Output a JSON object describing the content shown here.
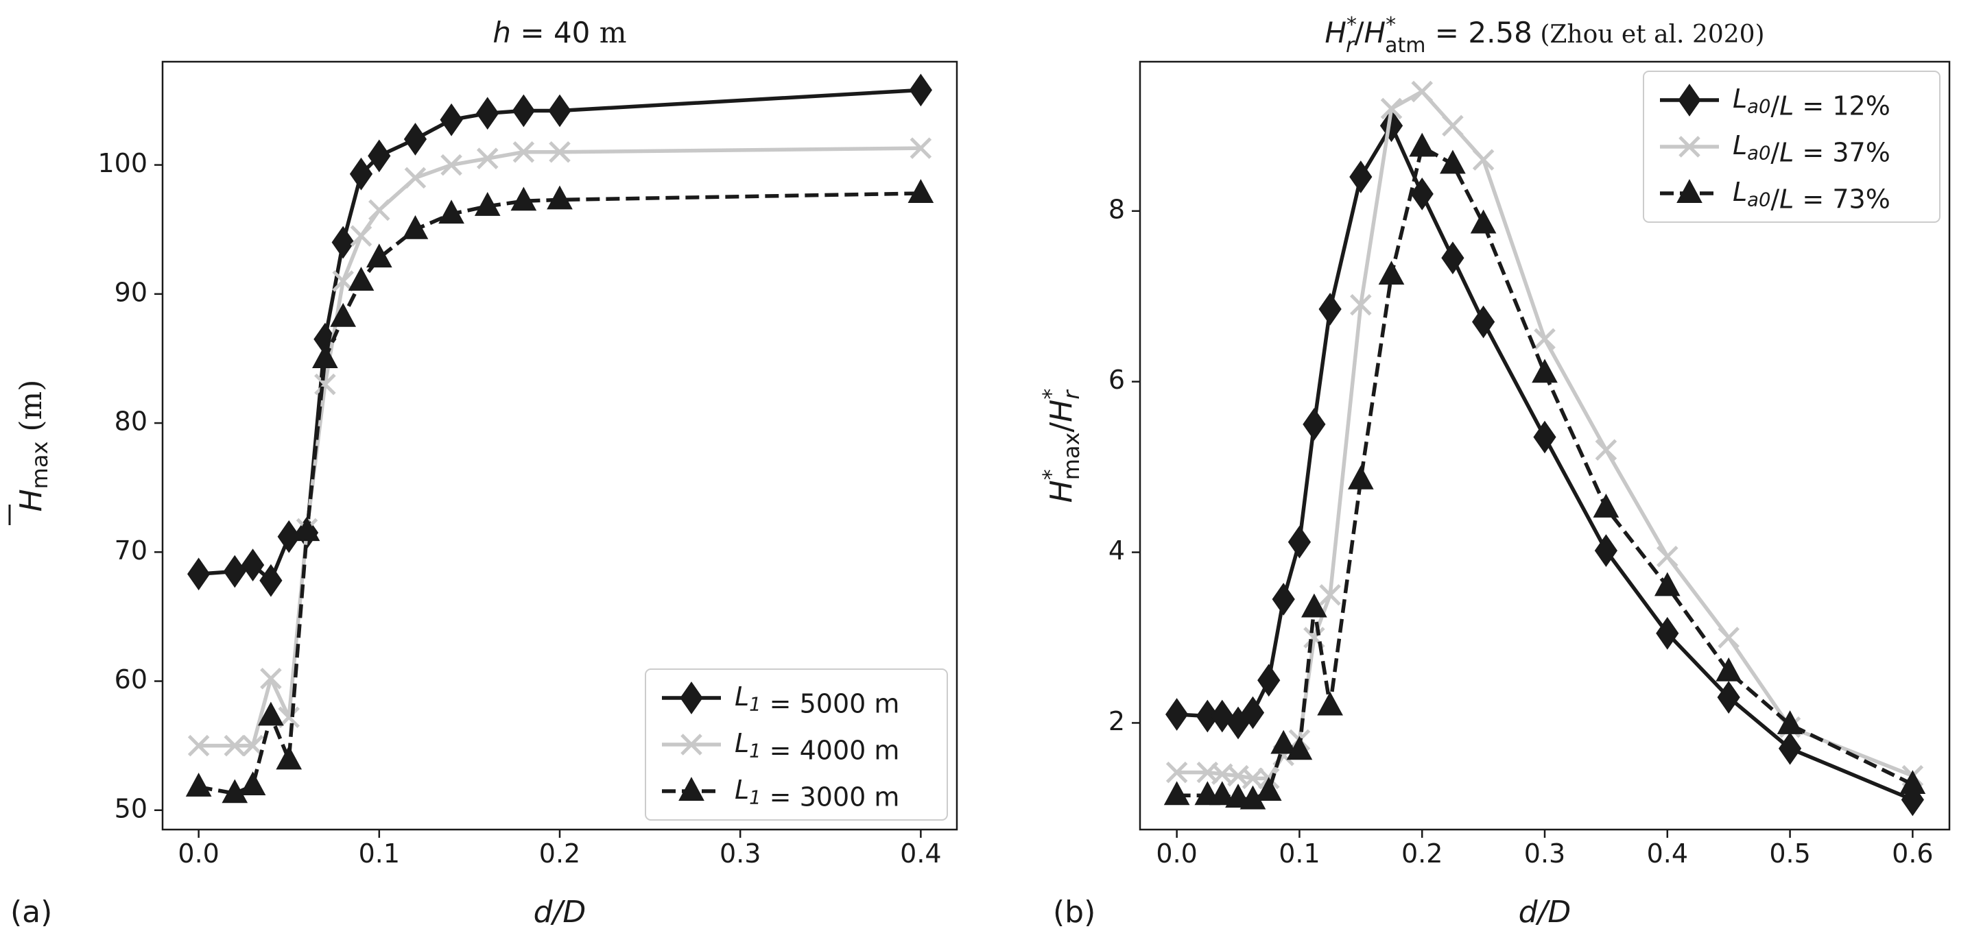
{
  "chart_data": [
    {
      "panel_label": "(a)",
      "type": "line",
      "title": {
        "prefix": "h = 40",
        "unit": " m"
      },
      "xlabel": "d/D",
      "ylabel": {
        "symbol": "H",
        "sub": "max",
        "unit": " (m)"
      },
      "xlim": [
        -0.02,
        0.42
      ],
      "ylim": [
        48.5,
        108
      ],
      "xticks": [
        "0.0",
        "0.1",
        "0.2",
        "0.3",
        "0.4"
      ],
      "yticks": [
        "50",
        "60",
        "70",
        "80",
        "90",
        "100"
      ],
      "grid": false,
      "legend_position": "lower-right",
      "series": [
        {
          "name": "L1 = 5000 m",
          "label": {
            "symbol": "L",
            "sub": "1",
            "rest": " = 5000 m"
          },
          "color": "#1a1a1a",
          "marker": "diamond",
          "dash": "solid",
          "x": [
            0.0,
            0.02,
            0.03,
            0.04,
            0.05,
            0.06,
            0.07,
            0.08,
            0.09,
            0.1,
            0.12,
            0.14,
            0.16,
            0.18,
            0.2,
            0.4
          ],
          "y": [
            68.3,
            68.5,
            69.0,
            67.8,
            71.2,
            71.5,
            86.5,
            94.0,
            99.3,
            100.7,
            102.0,
            103.5,
            104.0,
            104.2,
            104.2,
            105.8
          ]
        },
        {
          "name": "L1 = 4000 m",
          "label": {
            "symbol": "L",
            "sub": "1",
            "rest": " = 4000 m"
          },
          "color": "#c8c8c8",
          "marker": "x",
          "dash": "solid",
          "x": [
            0.0,
            0.02,
            0.03,
            0.04,
            0.05,
            0.06,
            0.07,
            0.08,
            0.09,
            0.1,
            0.12,
            0.14,
            0.16,
            0.18,
            0.2,
            0.4
          ],
          "y": [
            55.0,
            55.0,
            55.0,
            60.2,
            57.2,
            71.8,
            83.0,
            91.0,
            94.5,
            96.5,
            99.0,
            100.0,
            100.5,
            101.0,
            101.0,
            101.3
          ]
        },
        {
          "name": "L1 = 3000 m",
          "label": {
            "symbol": "L",
            "sub": "1",
            "rest": " = 3000 m"
          },
          "color": "#1a1a1a",
          "marker": "triangle",
          "dash": "dashed",
          "x": [
            0.0,
            0.02,
            0.03,
            0.04,
            0.05,
            0.06,
            0.07,
            0.08,
            0.09,
            0.1,
            0.12,
            0.14,
            0.16,
            0.18,
            0.2,
            0.4
          ],
          "y": [
            51.8,
            51.3,
            51.9,
            57.3,
            53.9,
            71.6,
            85.0,
            88.2,
            91.0,
            92.8,
            95.0,
            96.2,
            96.8,
            97.2,
            97.3,
            97.8
          ]
        }
      ]
    },
    {
      "panel_label": "(b)",
      "type": "line",
      "title": {
        "lhs": "H*r/H*atm = 2.58",
        "citation": "(Zhou et al. 2020)"
      },
      "xlabel": "d/D",
      "ylabel": "H*max/H*r",
      "xlim": [
        -0.03,
        0.63
      ],
      "ylim": [
        0.75,
        9.75
      ],
      "xticks": [
        "0.0",
        "0.1",
        "0.2",
        "0.3",
        "0.4",
        "0.5",
        "0.6"
      ],
      "yticks": [
        "2",
        "4",
        "6",
        "8"
      ],
      "grid": false,
      "legend_position": "upper-right",
      "series": [
        {
          "name": "La0/L = 12%",
          "label": {
            "symbol": "L",
            "sub": "a0",
            "rest": "/L = 12%"
          },
          "color": "#1a1a1a",
          "marker": "diamond",
          "dash": "solid",
          "x": [
            0.0,
            0.025,
            0.037,
            0.05,
            0.062,
            0.075,
            0.087,
            0.1,
            0.112,
            0.125,
            0.15,
            0.175,
            0.2,
            0.225,
            0.25,
            0.3,
            0.35,
            0.4,
            0.45,
            0.5,
            0.6
          ],
          "y": [
            2.1,
            2.08,
            2.08,
            2.0,
            2.12,
            2.5,
            3.45,
            4.12,
            5.5,
            6.85,
            8.4,
            9.0,
            8.2,
            7.45,
            6.7,
            5.35,
            4.02,
            3.05,
            2.3,
            1.7,
            1.1
          ]
        },
        {
          "name": "La0/L = 37%",
          "label": {
            "symbol": "L",
            "sub": "a0",
            "rest": "/L = 37%"
          },
          "color": "#c8c8c8",
          "marker": "x",
          "dash": "solid",
          "x": [
            0.0,
            0.025,
            0.037,
            0.05,
            0.062,
            0.075,
            0.087,
            0.1,
            0.112,
            0.125,
            0.15,
            0.175,
            0.2,
            0.225,
            0.25,
            0.3,
            0.35,
            0.4,
            0.45,
            0.5,
            0.6
          ],
          "y": [
            1.42,
            1.42,
            1.4,
            1.38,
            1.35,
            1.35,
            1.62,
            1.8,
            3.0,
            3.5,
            6.9,
            9.2,
            9.4,
            9.0,
            8.6,
            6.5,
            5.2,
            3.95,
            3.0,
            1.95,
            1.38
          ]
        },
        {
          "name": "La0/L = 73%",
          "label": {
            "symbol": "L",
            "sub": "a0",
            "rest": "/L = 73%"
          },
          "color": "#1a1a1a",
          "marker": "triangle",
          "dash": "dashed",
          "x": [
            0.0,
            0.025,
            0.037,
            0.05,
            0.062,
            0.075,
            0.087,
            0.1,
            0.112,
            0.125,
            0.15,
            0.175,
            0.2,
            0.225,
            0.25,
            0.3,
            0.35,
            0.4,
            0.45,
            0.5,
            0.6
          ],
          "y": [
            1.15,
            1.15,
            1.15,
            1.12,
            1.1,
            1.2,
            1.75,
            1.68,
            3.35,
            2.2,
            4.85,
            7.25,
            8.75,
            8.55,
            7.85,
            6.1,
            4.52,
            3.6,
            2.6,
            1.98,
            1.28
          ]
        }
      ]
    }
  ]
}
